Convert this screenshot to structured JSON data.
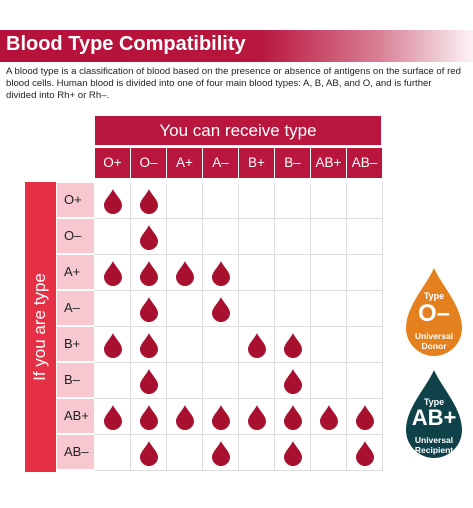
{
  "title": "Blood Type Compatibility",
  "intro": "A blood type is a classification of blood based on the presence or absence of antigens on the surface of red blood cells. Human blood is divided into one of four main blood types: A, B, AB, and O, and is further divided into Rh+ or Rh–.",
  "receive_header": "You can receive type",
  "side_header": "If you are type",
  "columns": [
    "O+",
    "O–",
    "A+",
    "A–",
    "B+",
    "B–",
    "AB+",
    "AB–"
  ],
  "rows": [
    "O+",
    "O–",
    "A+",
    "A–",
    "B+",
    "B–",
    "AB+",
    "AB–"
  ],
  "compatibility": [
    [
      1,
      1,
      0,
      0,
      0,
      0,
      0,
      0
    ],
    [
      0,
      1,
      0,
      0,
      0,
      0,
      0,
      0
    ],
    [
      1,
      1,
      1,
      1,
      0,
      0,
      0,
      0
    ],
    [
      0,
      1,
      0,
      1,
      0,
      0,
      0,
      0
    ],
    [
      1,
      1,
      0,
      0,
      1,
      1,
      0,
      0
    ],
    [
      0,
      1,
      0,
      0,
      0,
      1,
      0,
      0
    ],
    [
      1,
      1,
      1,
      1,
      1,
      1,
      1,
      1
    ],
    [
      0,
      1,
      0,
      1,
      0,
      1,
      0,
      1
    ]
  ],
  "icons": {
    "drop": "blood-drop-icon"
  },
  "colors": {
    "brand": "#b8163d",
    "side": "#e53045",
    "row_header": "#f7c8cf",
    "drop": "#a8102f",
    "donor_badge": "#e5801f",
    "recipient_badge": "#0f4248"
  },
  "badges": {
    "donor": {
      "label": "Type",
      "type": "O–",
      "line1": "Universal",
      "line2": "Donor"
    },
    "recipient": {
      "label": "Type",
      "type": "AB+",
      "line1": "Universal",
      "line2": "Recipient"
    }
  }
}
